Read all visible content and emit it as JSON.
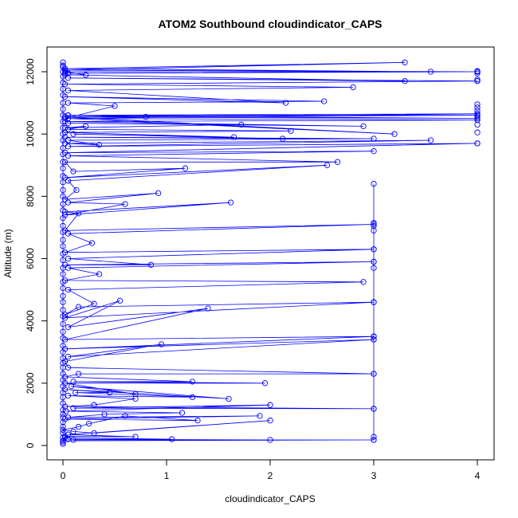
{
  "chart_data": {
    "type": "line",
    "title": "ATOM2 Southbound cloudindicator_CAPS",
    "xlabel": "cloudindicator_CAPS",
    "ylabel": "Altitude (m)",
    "xlim": [
      0,
      4
    ],
    "ylim": [
      0,
      12300
    ],
    "xticks": [
      0,
      1,
      2,
      3,
      4
    ],
    "yticks": [
      0,
      2000,
      4000,
      6000,
      8000,
      10000,
      12000
    ],
    "grid": false,
    "legend": "none",
    "color": "#0000ff",
    "markers": "open-circle",
    "points": [
      [
        0,
        100
      ],
      [
        0.02,
        250
      ],
      [
        1.05,
        200
      ],
      [
        0.05,
        200
      ],
      [
        2,
        180
      ],
      [
        0.1,
        180
      ],
      [
        3,
        180
      ],
      [
        0,
        150
      ],
      [
        0.02,
        300
      ],
      [
        0.7,
        280
      ],
      [
        0.05,
        350
      ],
      [
        2,
        800
      ],
      [
        0.3,
        400
      ],
      [
        0.1,
        450
      ],
      [
        0,
        500
      ],
      [
        0.15,
        600
      ],
      [
        0.25,
        700
      ],
      [
        0.6,
        950
      ],
      [
        1.3,
        800
      ],
      [
        0.02,
        850
      ],
      [
        1.9,
        950
      ],
      [
        0.05,
        900
      ],
      [
        0.4,
        1000
      ],
      [
        1.15,
        1050
      ],
      [
        0.03,
        1100
      ],
      [
        2,
        1300
      ],
      [
        0.1,
        1200
      ],
      [
        3,
        1180
      ],
      [
        0.02,
        1250
      ],
      [
        0.3,
        1300
      ],
      [
        0.7,
        1500
      ],
      [
        0.05,
        1600
      ],
      [
        1.25,
        1550
      ],
      [
        0.12,
        1700
      ],
      [
        0.45,
        1700
      ],
      [
        0.02,
        1800
      ],
      [
        1.6,
        1500
      ],
      [
        0.08,
        1900
      ],
      [
        0.7,
        1650
      ],
      [
        0.02,
        2000
      ],
      [
        1.95,
        2000
      ],
      [
        0.1,
        2050
      ],
      [
        1.25,
        2050
      ],
      [
        0.02,
        2200
      ],
      [
        0.15,
        2300
      ],
      [
        3,
        2300
      ],
      [
        0.05,
        2500
      ],
      [
        0.02,
        2700
      ],
      [
        0.95,
        3250
      ],
      [
        0.05,
        2850
      ],
      [
        3,
        3400
      ],
      [
        0.02,
        3100
      ],
      [
        3,
        3500
      ],
      [
        0.02,
        3400
      ],
      [
        1.4,
        4400
      ],
      [
        0.05,
        3800
      ],
      [
        0.55,
        4650
      ],
      [
        0.02,
        4100
      ],
      [
        3,
        4600
      ],
      [
        0.15,
        4450
      ],
      [
        0.02,
        4200
      ],
      [
        0.3,
        4550
      ],
      [
        0.05,
        5000
      ],
      [
        2.9,
        5250
      ],
      [
        0.02,
        5300
      ],
      [
        0.35,
        5500
      ],
      [
        0.05,
        5700
      ],
      [
        3,
        5900
      ],
      [
        0.02,
        5800
      ],
      [
        0.85,
        5800
      ],
      [
        0.05,
        6000
      ],
      [
        3,
        6300
      ],
      [
        0.02,
        6200
      ],
      [
        0.28,
        6500
      ],
      [
        0.05,
        6800
      ],
      [
        3,
        7100
      ],
      [
        0.02,
        6900
      ],
      [
        0.15,
        7450
      ],
      [
        0.02,
        7500
      ],
      [
        1.62,
        7800
      ],
      [
        0.02,
        7400
      ],
      [
        0.6,
        7750
      ],
      [
        0.05,
        7800
      ],
      [
        0.92,
        8100
      ],
      [
        0.02,
        7900
      ],
      [
        0.13,
        8200
      ],
      [
        0.05,
        8500
      ],
      [
        2.55,
        9000
      ],
      [
        0.02,
        8600
      ],
      [
        1.18,
        8900
      ],
      [
        0.1,
        8800
      ],
      [
        0.02,
        9100
      ],
      [
        2.65,
        9100
      ],
      [
        0.05,
        9300
      ],
      [
        3,
        9450
      ],
      [
        0.02,
        9400
      ],
      [
        4,
        9700
      ],
      [
        0.05,
        9600
      ],
      [
        3.55,
        9800
      ],
      [
        0.02,
        9700
      ],
      [
        0.35,
        9650
      ],
      [
        0.05,
        9800
      ],
      [
        3,
        9850
      ],
      [
        0.02,
        9900
      ],
      [
        2.12,
        9850
      ],
      [
        0.1,
        10000
      ],
      [
        1.65,
        9900
      ],
      [
        0.02,
        10050
      ],
      [
        2.2,
        10100
      ],
      [
        0.05,
        10150
      ],
      [
        0.22,
        10250
      ],
      [
        0.02,
        10200
      ],
      [
        1.72,
        10300
      ],
      [
        0.05,
        10350
      ],
      [
        2.9,
        10250
      ],
      [
        0.02,
        10400
      ],
      [
        4,
        10450
      ],
      [
        0.05,
        10500
      ],
      [
        3.2,
        10000
      ],
      [
        0.02,
        10550
      ],
      [
        4,
        10600
      ],
      [
        0.05,
        10600
      ],
      [
        4,
        10500
      ],
      [
        0.02,
        10550
      ],
      [
        0.8,
        10550
      ],
      [
        0.05,
        10600
      ],
      [
        4,
        10650
      ],
      [
        0.02,
        10500
      ],
      [
        0.5,
        10900
      ],
      [
        0.05,
        11000
      ],
      [
        2.52,
        11050
      ],
      [
        0.02,
        11200
      ],
      [
        2.15,
        11000
      ],
      [
        0.05,
        11400
      ],
      [
        2.8,
        11500
      ],
      [
        0.02,
        11600
      ],
      [
        4,
        11700
      ],
      [
        0.05,
        11800
      ],
      [
        3.3,
        11700
      ],
      [
        0.02,
        11900
      ],
      [
        0.22,
        11900
      ],
      [
        0.02,
        12000
      ],
      [
        4,
        12000
      ],
      [
        0.05,
        11950
      ],
      [
        4,
        12000
      ],
      [
        0.02,
        12050
      ],
      [
        3.3,
        12300
      ],
      [
        0.02,
        12100
      ],
      [
        3.55,
        12000
      ],
      [
        0.02,
        11950
      ],
      [
        0,
        12200
      ]
    ],
    "col3_points": [
      [
        3,
        180
      ],
      [
        3,
        280
      ],
      [
        3,
        1180
      ],
      [
        3,
        2300
      ],
      [
        3,
        3400
      ],
      [
        3,
        3500
      ],
      [
        3,
        4600
      ],
      [
        3,
        5700
      ],
      [
        3,
        5900
      ],
      [
        3,
        6300
      ],
      [
        3,
        6900
      ],
      [
        3,
        7050
      ],
      [
        3,
        7150
      ],
      [
        3,
        8400
      ]
    ],
    "col4_points": [
      [
        4,
        9700
      ],
      [
        4,
        10050
      ],
      [
        4,
        10300
      ],
      [
        4,
        10450
      ],
      [
        4,
        10550
      ],
      [
        4,
        10650
      ],
      [
        4,
        10750
      ],
      [
        4,
        10850
      ],
      [
        4,
        10950
      ],
      [
        4,
        11700
      ],
      [
        4,
        11750
      ],
      [
        4,
        11950
      ],
      [
        4,
        12000
      ],
      [
        4,
        12020
      ]
    ],
    "col0_points": [
      [
        0,
        50
      ],
      [
        0,
        150
      ],
      [
        0,
        250
      ],
      [
        0,
        400
      ],
      [
        0,
        600
      ],
      [
        0,
        750
      ],
      [
        0,
        900
      ],
      [
        0,
        1000
      ],
      [
        0,
        1150
      ],
      [
        0,
        1350
      ],
      [
        0,
        1550
      ],
      [
        0,
        1700
      ],
      [
        0,
        1900
      ],
      [
        0,
        2100
      ],
      [
        0,
        2300
      ],
      [
        0,
        2500
      ],
      [
        0,
        2650
      ],
      [
        0,
        2800
      ],
      [
        0,
        3000
      ],
      [
        0,
        3200
      ],
      [
        0,
        3450
      ],
      [
        0,
        3650
      ],
      [
        0,
        3900
      ],
      [
        0,
        4150
      ],
      [
        0,
        4350
      ],
      [
        0,
        4600
      ],
      [
        0,
        4800
      ],
      [
        0,
        5050
      ],
      [
        0,
        5250
      ],
      [
        0,
        5500
      ],
      [
        0,
        5700
      ],
      [
        0,
        5950
      ],
      [
        0,
        6150
      ],
      [
        0,
        6400
      ],
      [
        0,
        6600
      ],
      [
        0,
        6850
      ],
      [
        0,
        7050
      ],
      [
        0,
        7300
      ],
      [
        0,
        7550
      ],
      [
        0,
        7750
      ],
      [
        0,
        8000
      ],
      [
        0,
        8200
      ],
      [
        0,
        8450
      ],
      [
        0,
        8650
      ],
      [
        0,
        8900
      ],
      [
        0,
        9100
      ],
      [
        0,
        9350
      ],
      [
        0,
        9550
      ],
      [
        0,
        9800
      ],
      [
        0,
        10000
      ],
      [
        0,
        10200
      ],
      [
        0,
        10400
      ],
      [
        0,
        10600
      ],
      [
        0,
        10800
      ],
      [
        0,
        11000
      ],
      [
        0,
        11250
      ],
      [
        0,
        11450
      ],
      [
        0,
        11650
      ],
      [
        0,
        11850
      ],
      [
        0,
        12000
      ],
      [
        0,
        12150
      ],
      [
        0,
        12300
      ]
    ]
  }
}
